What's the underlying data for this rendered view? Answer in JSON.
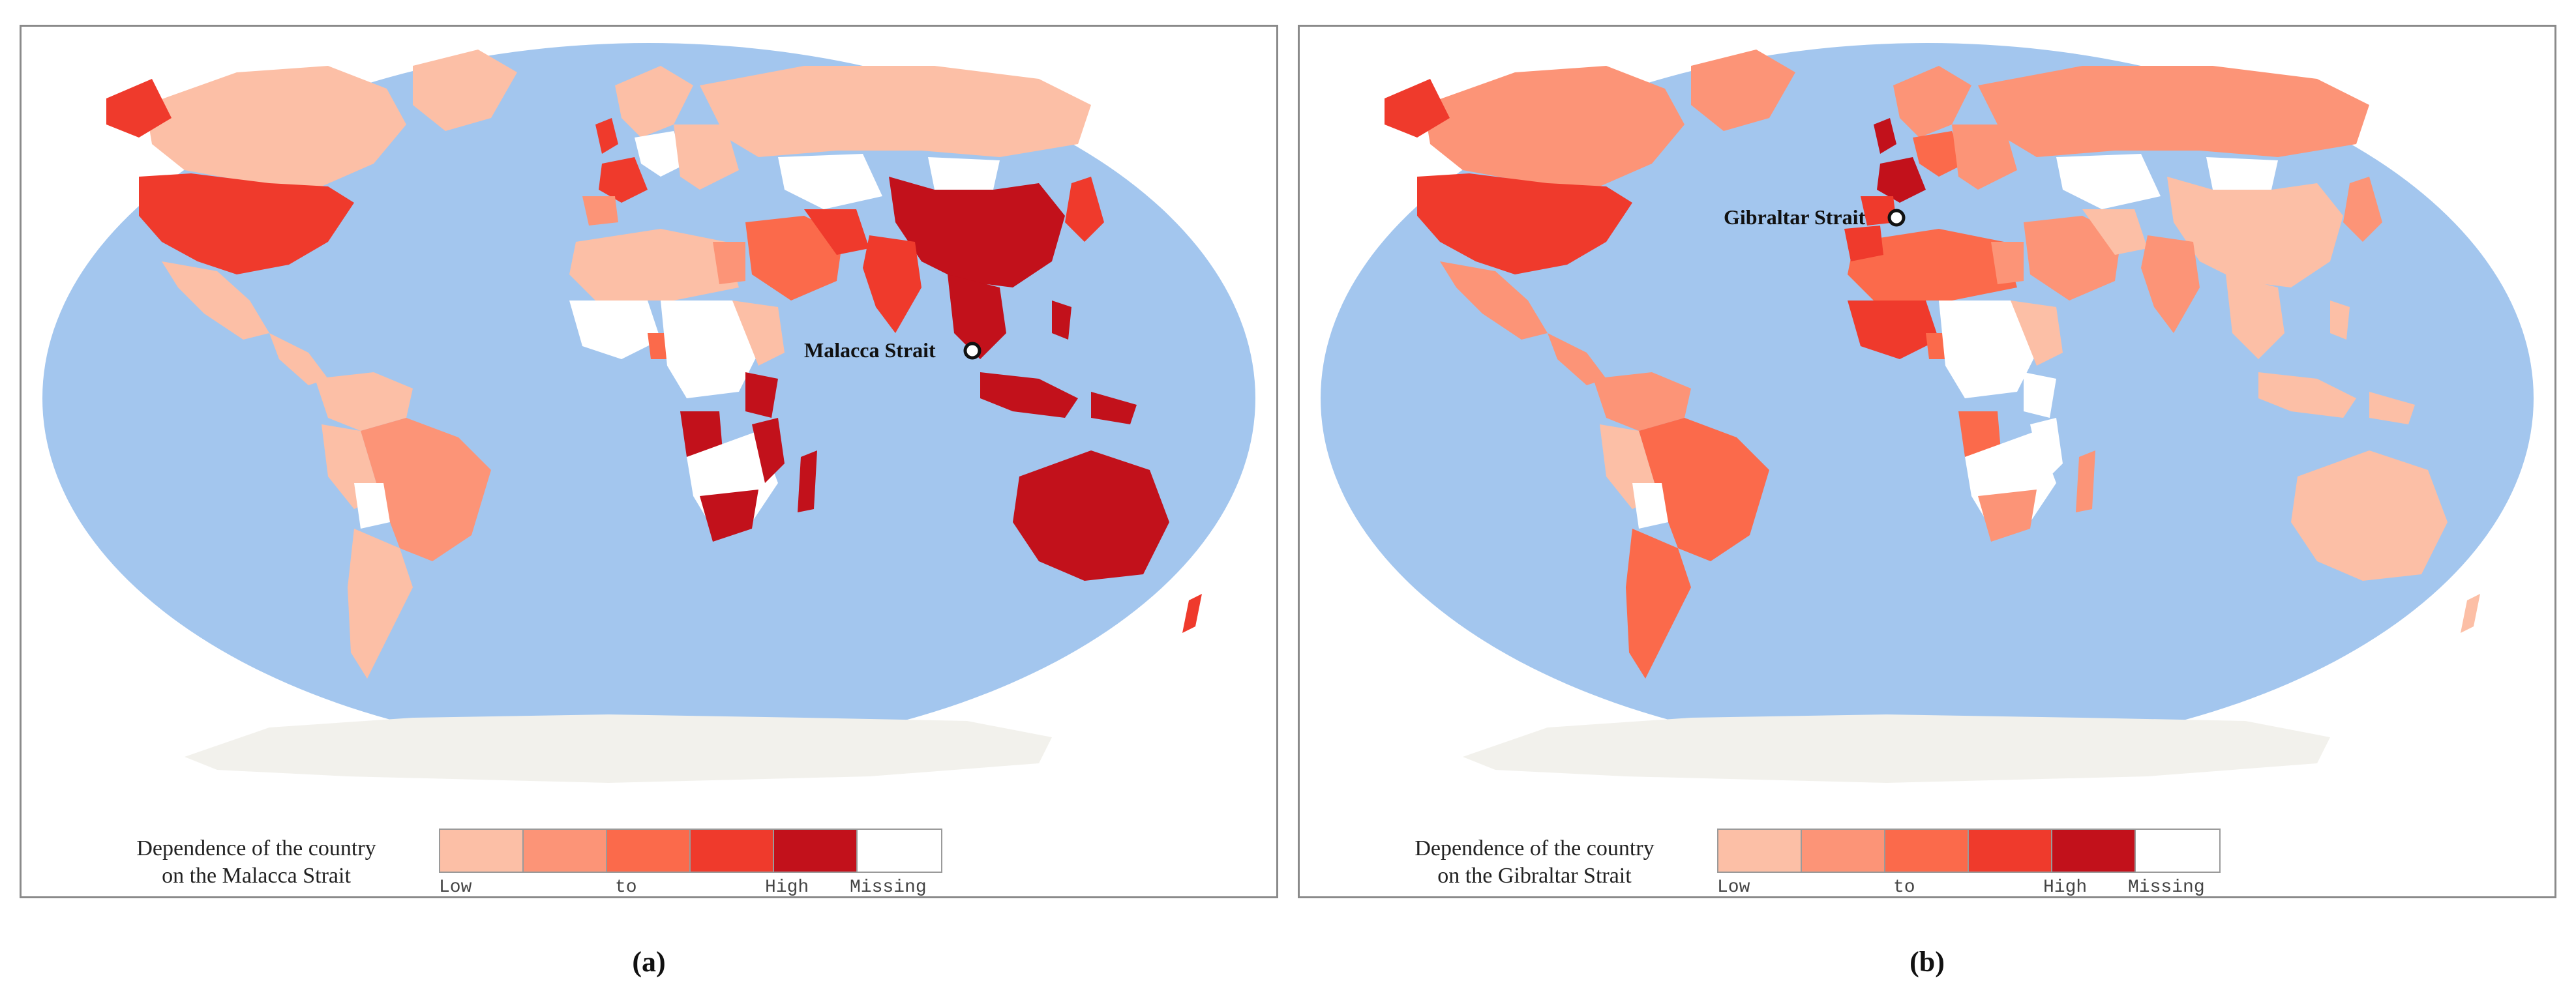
{
  "colors": {
    "ocean": "#a3c6ee",
    "land_missing": "#f4f3ee",
    "antarctica": "#f2f1ec",
    "scale": [
      "#fcbfa6",
      "#fc9477",
      "#fb6a4b",
      "#ef3a2c",
      "#c2111b",
      "#ffffff"
    ]
  },
  "panels": [
    {
      "id": "a",
      "caption": "(a)",
      "strait_label": "Malacca Strait",
      "legend": {
        "title_line1": "Dependence of the country",
        "title_line2": "on the Malacca Strait",
        "label_low": "Low",
        "label_to": "to",
        "label_high": "High",
        "label_missing": "Missing"
      }
    },
    {
      "id": "b",
      "caption": "(b)",
      "strait_label": "Gibraltar Strait",
      "legend": {
        "title_line1": "Dependence of the country",
        "title_line2": "on the Gibraltar Strait",
        "label_low": "Low",
        "label_to": "to",
        "label_high": "High",
        "label_missing": "Missing"
      }
    }
  ]
}
